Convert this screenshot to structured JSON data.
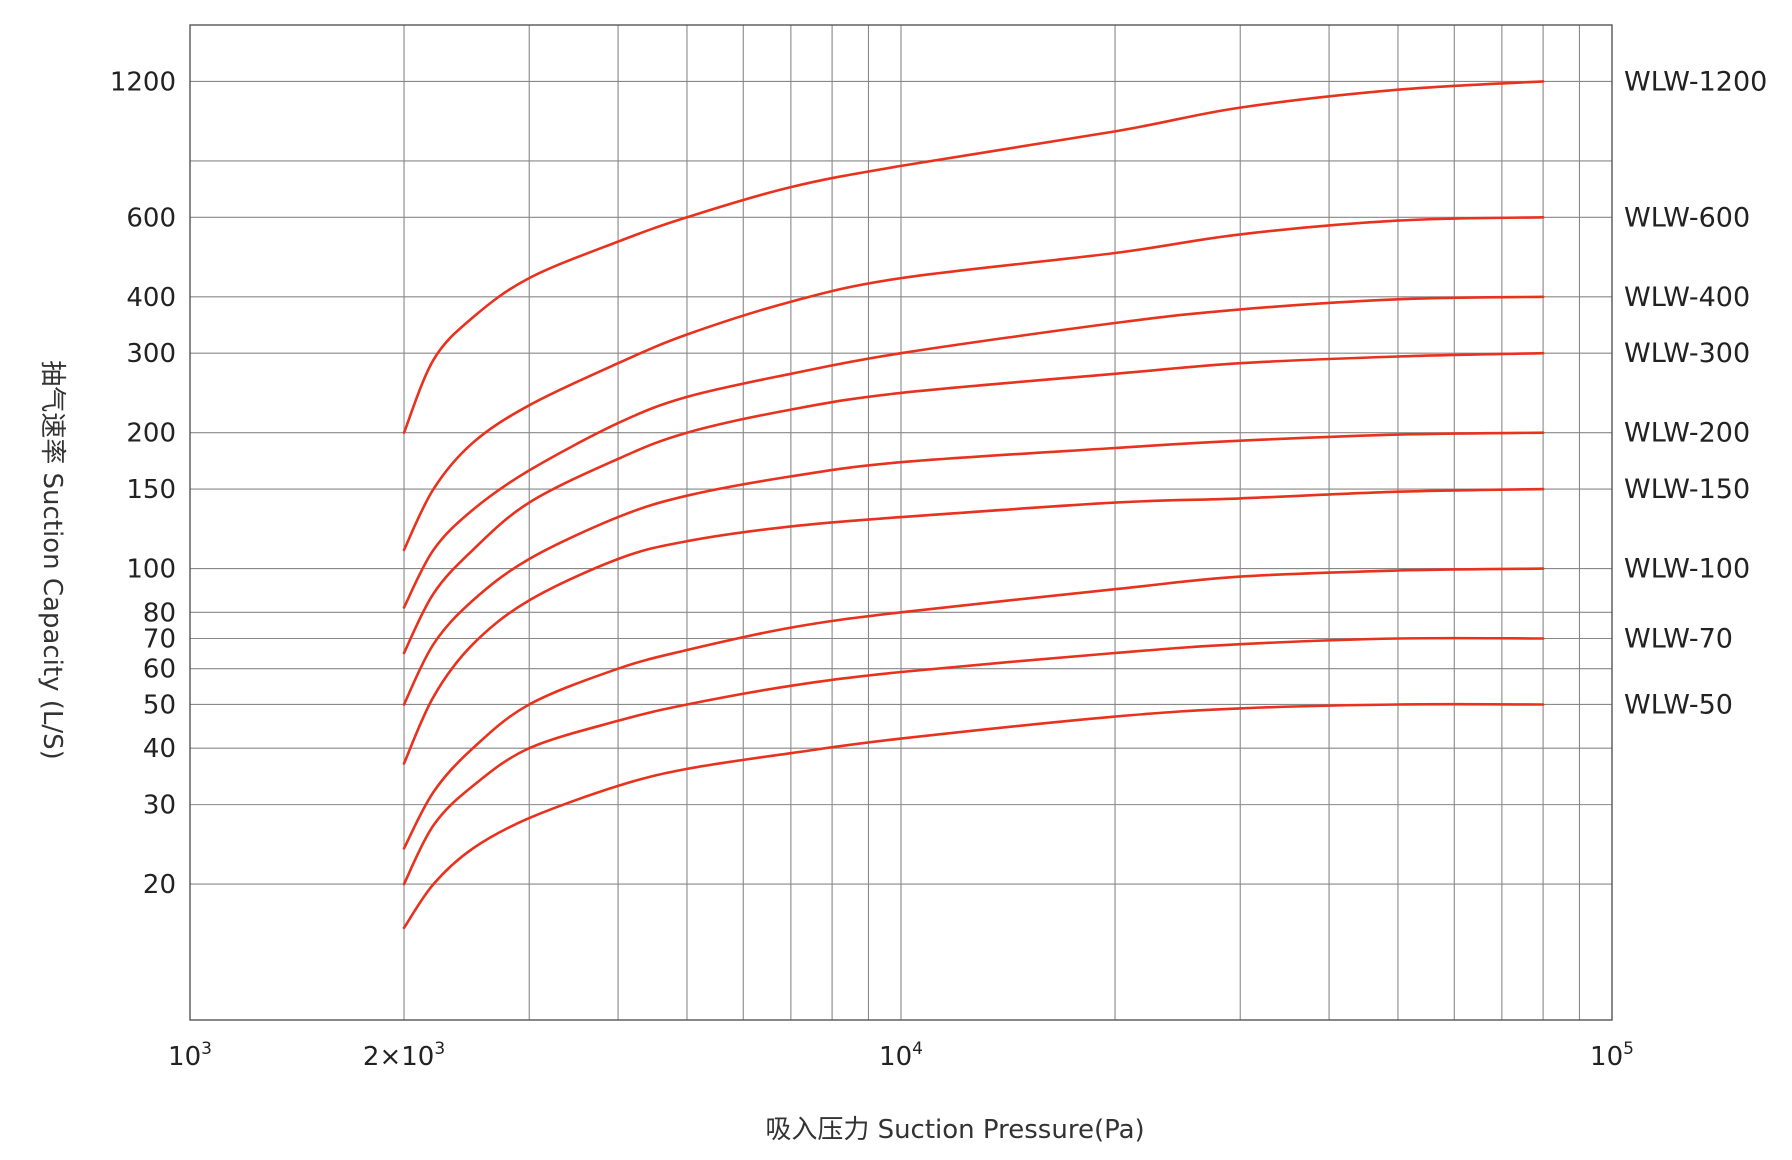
{
  "chart_data": {
    "type": "line",
    "title": "",
    "xlabel": "吸入压力 Suction Pressure(Pa)",
    "ylabel": "抽气速率 Suction Capacity (L/S)",
    "x_scale": "log",
    "y_scale": "log",
    "xlim": [
      1000,
      100000
    ],
    "ylim": [
      10,
      1600
    ],
    "grid": true,
    "line_color": "#e8321e",
    "x_ticks": [
      {
        "value": 1000,
        "base": "10",
        "exp": "3"
      },
      {
        "value": 2000,
        "base": "2×10",
        "exp": "3"
      },
      {
        "value": 10000,
        "base": "10",
        "exp": "4"
      },
      {
        "value": 100000,
        "base": "10",
        "exp": "5"
      }
    ],
    "x_grid": [
      2000,
      3000,
      4000,
      5000,
      6000,
      7000,
      8000,
      9000,
      10000,
      20000,
      30000,
      40000,
      50000,
      60000,
      70000,
      80000,
      90000
    ],
    "y_ticks": [
      {
        "value": 1200,
        "label": "1200"
      },
      {
        "value": 600,
        "label": "600"
      },
      {
        "value": 400,
        "label": "400"
      },
      {
        "value": 300,
        "label": "300"
      },
      {
        "value": 200,
        "label": "200"
      },
      {
        "value": 150,
        "label": "150"
      },
      {
        "value": 100,
        "label": "100"
      },
      {
        "value": 80,
        "label": "80"
      },
      {
        "value": 70,
        "label": "70"
      },
      {
        "value": 60,
        "label": "60"
      },
      {
        "value": 50,
        "label": "50"
      },
      {
        "value": 40,
        "label": "40"
      },
      {
        "value": 30,
        "label": "30"
      },
      {
        "value": 20,
        "label": "20"
      }
    ],
    "y_grid": [
      1200,
      800,
      600,
      400,
      300,
      200,
      150,
      100,
      80,
      70,
      60,
      50,
      40,
      30,
      20
    ],
    "series": [
      {
        "name": "WLW-1200",
        "x": [
          2000,
          2200,
          2500,
          3000,
          4000,
          5000,
          7000,
          10000,
          20000,
          30000,
          50000,
          80000
        ],
        "y": [
          200,
          290,
          360,
          440,
          530,
          600,
          700,
          780,
          930,
          1050,
          1150,
          1200
        ]
      },
      {
        "name": "WLW-600",
        "x": [
          2000,
          2200,
          2500,
          3000,
          4000,
          5000,
          7000,
          10000,
          20000,
          30000,
          50000,
          80000
        ],
        "y": [
          110,
          150,
          190,
          230,
          285,
          330,
          390,
          440,
          500,
          550,
          590,
          600
        ]
      },
      {
        "name": "WLW-400",
        "x": [
          2000,
          2200,
          2500,
          3000,
          4000,
          5000,
          7000,
          10000,
          20000,
          30000,
          50000,
          80000
        ],
        "y": [
          82,
          110,
          135,
          165,
          210,
          240,
          270,
          300,
          350,
          375,
          395,
          400
        ]
      },
      {
        "name": "WLW-300",
        "x": [
          2000,
          2200,
          2500,
          3000,
          4000,
          5000,
          7000,
          10000,
          20000,
          30000,
          50000,
          80000
        ],
        "y": [
          65,
          88,
          110,
          140,
          175,
          200,
          225,
          245,
          270,
          285,
          295,
          300
        ]
      },
      {
        "name": "WLW-200",
        "x": [
          2000,
          2200,
          2500,
          3000,
          4000,
          5000,
          7000,
          10000,
          20000,
          30000,
          50000,
          80000
        ],
        "y": [
          50,
          68,
          85,
          105,
          130,
          145,
          160,
          172,
          185,
          192,
          198,
          200
        ]
      },
      {
        "name": "WLW-150",
        "x": [
          2000,
          2200,
          2500,
          3000,
          4000,
          5000,
          7000,
          10000,
          20000,
          30000,
          50000,
          80000
        ],
        "y": [
          37,
          52,
          68,
          85,
          105,
          115,
          124,
          130,
          140,
          143,
          148,
          150
        ]
      },
      {
        "name": "WLW-100",
        "x": [
          2000,
          2200,
          2500,
          3000,
          4000,
          5000,
          7000,
          10000,
          20000,
          30000,
          50000,
          80000
        ],
        "y": [
          24,
          32,
          40,
          50,
          60,
          66,
          74,
          80,
          90,
          96,
          99,
          100
        ]
      },
      {
        "name": "WLW-70",
        "x": [
          2000,
          2200,
          2500,
          3000,
          4000,
          5000,
          7000,
          10000,
          20000,
          30000,
          50000,
          80000
        ],
        "y": [
          20,
          27,
          33,
          40,
          46,
          50,
          55,
          59,
          65,
          68,
          70,
          70
        ]
      },
      {
        "name": "WLW-50",
        "x": [
          2000,
          2200,
          2500,
          3000,
          4000,
          5000,
          7000,
          10000,
          20000,
          30000,
          50000,
          80000
        ],
        "y": [
          16,
          20,
          24,
          28,
          33,
          36,
          39,
          42,
          47,
          49,
          50,
          50
        ]
      }
    ]
  }
}
